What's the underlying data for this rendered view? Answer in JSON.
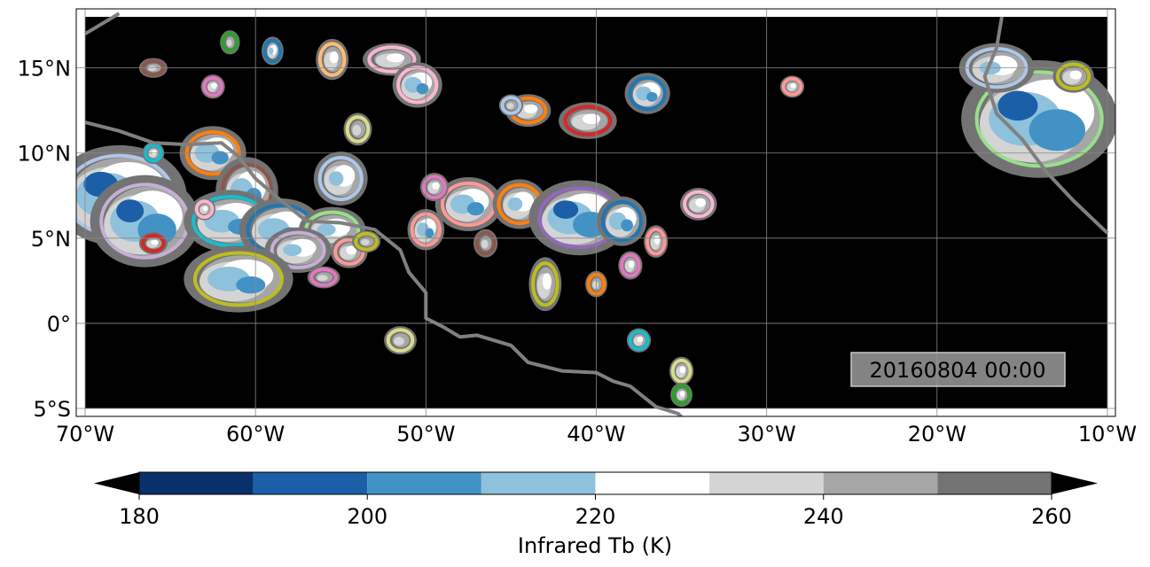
{
  "map": {
    "lon_range": [
      -70,
      -10
    ],
    "lat_range": [
      -5.5,
      18.5
    ],
    "lon_ticks": [
      {
        "value": -70,
        "label": "70°W"
      },
      {
        "value": -60,
        "label": "60°W"
      },
      {
        "value": -50,
        "label": "50°W"
      },
      {
        "value": -40,
        "label": "40°W"
      },
      {
        "value": -30,
        "label": "30°W"
      },
      {
        "value": -20,
        "label": "20°W"
      },
      {
        "value": -10,
        "label": "10°W"
      }
    ],
    "lat_ticks": [
      {
        "value": 15,
        "label": "15°N"
      },
      {
        "value": 10,
        "label": "10°N"
      },
      {
        "value": 5,
        "label": "5°N"
      },
      {
        "value": 0,
        "label": "0°"
      },
      {
        "value": -5,
        "label": "5°S"
      }
    ],
    "timestamp": "20160804 00:00",
    "grid": true,
    "background_color": "#000000",
    "coastline_color": "#808080"
  },
  "colorbar": {
    "label": "Infrared Tb (K)",
    "min": 180,
    "max": 260,
    "ticks": [
      {
        "value": 180,
        "label": "180"
      },
      {
        "value": 200,
        "label": "200"
      },
      {
        "value": 220,
        "label": "220"
      },
      {
        "value": 240,
        "label": "240"
      },
      {
        "value": 260,
        "label": "260"
      }
    ],
    "bins": [
      {
        "from": 180,
        "to": 190,
        "color": "#08306b"
      },
      {
        "from": 190,
        "to": 200,
        "color": "#1a5fa8"
      },
      {
        "from": 200,
        "to": 210,
        "color": "#4292c6"
      },
      {
        "from": 210,
        "to": 220,
        "color": "#8ec1dc"
      },
      {
        "from": 220,
        "to": 230,
        "color": "#ffffff"
      },
      {
        "from": 230,
        "to": 240,
        "color": "#d4d4d4"
      },
      {
        "from": 240,
        "to": 250,
        "color": "#a6a6a6"
      },
      {
        "from": 250,
        "to": 260,
        "color": "#737373"
      }
    ],
    "under_color": "#08306b",
    "over_color": "#000000"
  },
  "systems": [
    {
      "lon": -68,
      "lat": 7.5,
      "rx": 3.0,
      "ry": 2.2,
      "outline": "#aec7e8",
      "core": 195
    },
    {
      "lon": -66.5,
      "lat": 6.0,
      "rx": 2.4,
      "ry": 2.0,
      "outline": "#c5b0d5",
      "core": 195
    },
    {
      "lon": -62.5,
      "lat": 10.0,
      "rx": 1.4,
      "ry": 1.1,
      "outline": "#ff7f0e",
      "core": 200
    },
    {
      "lon": -60.5,
      "lat": 7.8,
      "rx": 1.3,
      "ry": 1.4,
      "outline": "#8c564b",
      "core": 205
    },
    {
      "lon": -61.5,
      "lat": 6.0,
      "rx": 2.0,
      "ry": 1.3,
      "outline": "#17becf",
      "core": 205
    },
    {
      "lon": -58.5,
      "lat": 5.5,
      "rx": 1.8,
      "ry": 1.3,
      "outline": "#1f77b4",
      "core": 200
    },
    {
      "lon": -55.5,
      "lat": 5.5,
      "rx": 1.4,
      "ry": 0.9,
      "outline": "#98df8a",
      "core": 215
    },
    {
      "lon": -57.5,
      "lat": 4.3,
      "rx": 1.4,
      "ry": 0.9,
      "outline": "#c5b0d5",
      "core": 215
    },
    {
      "lon": -61,
      "lat": 2.6,
      "rx": 2.4,
      "ry": 1.4,
      "outline": "#bcbd22",
      "core": 200
    },
    {
      "lon": -55,
      "lat": 8.5,
      "rx": 1.1,
      "ry": 1.1,
      "outline": "#aec7e8",
      "core": 215
    },
    {
      "lon": -54.5,
      "lat": 4.2,
      "rx": 0.7,
      "ry": 0.6,
      "outline": "#ff9896",
      "core": 220
    },
    {
      "lon": -55.5,
      "lat": 15.5,
      "rx": 0.6,
      "ry": 0.8,
      "outline": "#ffbb78",
      "core": 225
    },
    {
      "lon": -52,
      "lat": 15.5,
      "rx": 1.2,
      "ry": 0.6,
      "outline": "#f7b6d2",
      "core": 220
    },
    {
      "lon": -50.5,
      "lat": 14.0,
      "rx": 1.0,
      "ry": 0.9,
      "outline": "#f7b6d2",
      "core": 205
    },
    {
      "lon": -54,
      "lat": 11.4,
      "rx": 0.5,
      "ry": 0.6,
      "outline": "#dbdb8d",
      "core": 230
    },
    {
      "lon": -50,
      "lat": 5.5,
      "rx": 0.7,
      "ry": 0.8,
      "outline": "#ff9896",
      "core": 205
    },
    {
      "lon": -47.5,
      "lat": 7.0,
      "rx": 1.4,
      "ry": 1.1,
      "outline": "#ff9896",
      "core": 205
    },
    {
      "lon": -44.5,
      "lat": 7.0,
      "rx": 1.1,
      "ry": 1.0,
      "outline": "#ff7f0e",
      "core": 210
    },
    {
      "lon": -41,
      "lat": 6.2,
      "rx": 2.2,
      "ry": 1.6,
      "outline": "#9467bd",
      "core": 195
    },
    {
      "lon": -38.5,
      "lat": 6.0,
      "rx": 1.0,
      "ry": 1.0,
      "outline": "#1f77b4",
      "core": 200
    },
    {
      "lon": -43,
      "lat": 2.3,
      "rx": 0.6,
      "ry": 1.1,
      "outline": "#bcbd22",
      "core": 225
    },
    {
      "lon": -44,
      "lat": 12.5,
      "rx": 0.9,
      "ry": 0.6,
      "outline": "#ff7f0e",
      "core": 220
    },
    {
      "lon": -40.5,
      "lat": 11.9,
      "rx": 1.2,
      "ry": 0.7,
      "outline": "#d62728",
      "core": 225
    },
    {
      "lon": -37,
      "lat": 13.5,
      "rx": 0.9,
      "ry": 0.8,
      "outline": "#1f77b4",
      "core": 205
    },
    {
      "lon": -34,
      "lat": 7.0,
      "rx": 0.7,
      "ry": 0.6,
      "outline": "#f7b6d2",
      "core": 220
    },
    {
      "lon": -36.5,
      "lat": 4.8,
      "rx": 0.4,
      "ry": 0.6,
      "outline": "#ff9896",
      "core": 225
    },
    {
      "lon": -38,
      "lat": 3.4,
      "rx": 0.4,
      "ry": 0.5,
      "outline": "#e377c2",
      "core": 225
    },
    {
      "lon": -51.5,
      "lat": -1.0,
      "rx": 0.6,
      "ry": 0.5,
      "outline": "#dbdb8d",
      "core": 230
    },
    {
      "lon": -37.5,
      "lat": -1.0,
      "rx": 0.4,
      "ry": 0.4,
      "outline": "#17becf",
      "core": 220
    },
    {
      "lon": -35,
      "lat": -2.8,
      "rx": 0.4,
      "ry": 0.5,
      "outline": "#dbdb8d",
      "core": 225
    },
    {
      "lon": -35,
      "lat": -4.2,
      "rx": 0.35,
      "ry": 0.4,
      "outline": "#2ca02c",
      "core": 225
    },
    {
      "lon": -28.5,
      "lat": 13.9,
      "rx": 0.4,
      "ry": 0.35,
      "outline": "#ff9896",
      "core": 225
    },
    {
      "lon": -14,
      "lat": 12.0,
      "rx": 3.5,
      "ry": 2.6,
      "outline": "#98df8a",
      "core": 195
    },
    {
      "lon": -16.5,
      "lat": 15.0,
      "rx": 1.6,
      "ry": 1.0,
      "outline": "#aec7e8",
      "core": 215
    },
    {
      "lon": -12,
      "lat": 14.5,
      "rx": 0.8,
      "ry": 0.6,
      "outline": "#bcbd22",
      "core": 225
    },
    {
      "lon": -59,
      "lat": 16.0,
      "rx": 0.35,
      "ry": 0.5,
      "outline": "#1f77b4",
      "core": 215
    },
    {
      "lon": -61.5,
      "lat": 16.5,
      "rx": 0.3,
      "ry": 0.4,
      "outline": "#2ca02c",
      "core": 230
    },
    {
      "lon": -66,
      "lat": 15.0,
      "rx": 0.5,
      "ry": 0.3,
      "outline": "#8c564b",
      "core": 235
    },
    {
      "lon": -62.5,
      "lat": 13.9,
      "rx": 0.4,
      "ry": 0.4,
      "outline": "#e377c2",
      "core": 225
    },
    {
      "lon": -66,
      "lat": 10.0,
      "rx": 0.35,
      "ry": 0.35,
      "outline": "#17becf",
      "core": 225
    },
    {
      "lon": -66,
      "lat": 4.7,
      "rx": 0.5,
      "ry": 0.35,
      "outline": "#d62728",
      "core": 225
    },
    {
      "lon": -63,
      "lat": 6.7,
      "rx": 0.35,
      "ry": 0.35,
      "outline": "#f7b6d2",
      "core": 225
    },
    {
      "lon": -53.5,
      "lat": 4.8,
      "rx": 0.5,
      "ry": 0.35,
      "outline": "#bcbd22",
      "core": 230
    },
    {
      "lon": -56,
      "lat": 2.7,
      "rx": 0.6,
      "ry": 0.35,
      "outline": "#e377c2",
      "core": 230
    },
    {
      "lon": -49.5,
      "lat": 8.0,
      "rx": 0.5,
      "ry": 0.5,
      "outline": "#e377c2",
      "core": 225
    },
    {
      "lon": -46.5,
      "lat": 4.7,
      "rx": 0.4,
      "ry": 0.5,
      "outline": "#8c564b",
      "core": 230
    },
    {
      "lon": -40,
      "lat": 2.3,
      "rx": 0.35,
      "ry": 0.45,
      "outline": "#ff7f0e",
      "core": 230
    },
    {
      "lon": -45,
      "lat": 12.8,
      "rx": 0.4,
      "ry": 0.35,
      "outline": "#aec7e8",
      "core": 230
    }
  ]
}
